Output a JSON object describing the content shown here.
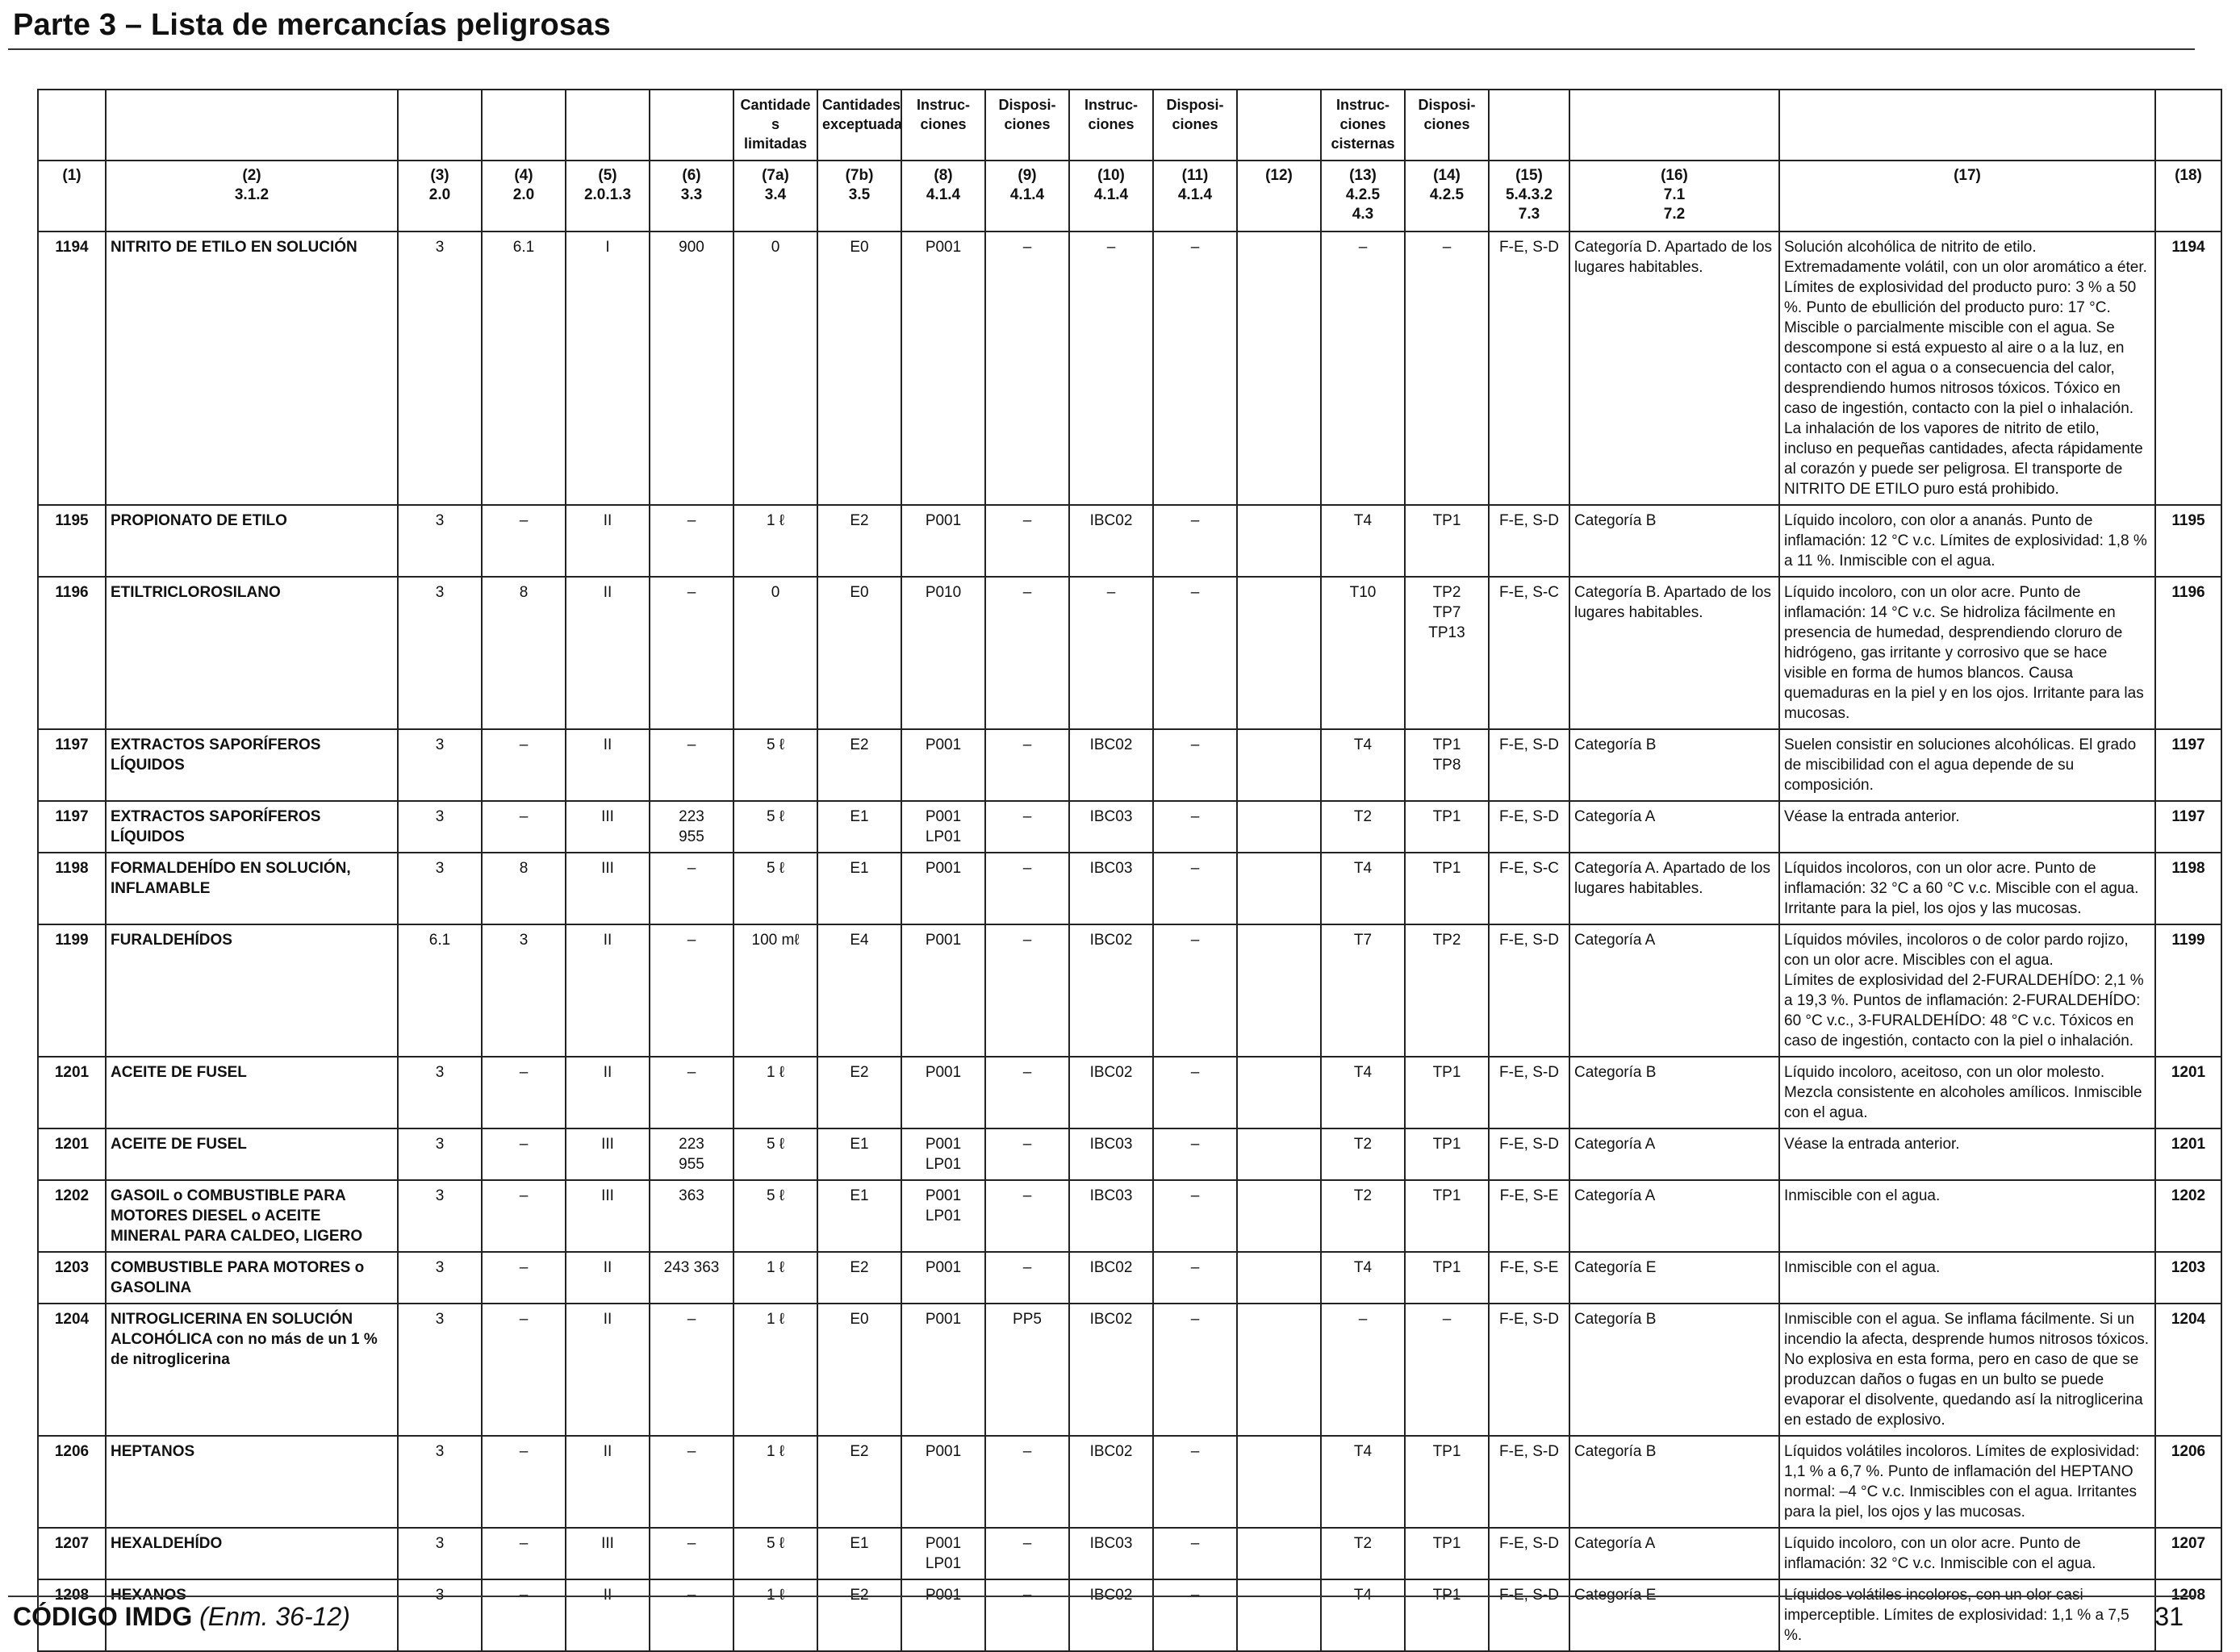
{
  "header": {
    "title": "Parte 3 – Lista de mercancías peligrosas"
  },
  "table": {
    "header_row1": [
      "",
      "",
      "",
      "",
      "",
      "",
      "Cantidade\ns limitadas",
      "Cantidades\nexceptuadas",
      "Instruc-\nciones",
      "Disposi-\nciones",
      "Instruc-\nciones",
      "Disposi-\nciones",
      "",
      "Instruc-\nciones\ncisternas",
      "Disposi-\nciones",
      "",
      "",
      "",
      ""
    ],
    "header_row2": [
      "(1)",
      "(2)\n3.1.2",
      "(3)\n2.0",
      "(4)\n2.0",
      "(5)\n2.0.1.3",
      "(6)\n3.3",
      "(7a)\n3.4",
      "(7b)\n3.5",
      "(8)\n4.1.4",
      "(9)\n4.1.4",
      "(10)\n4.1.4",
      "(11)\n4.1.4",
      "(12)",
      "(13)\n4.2.5\n4.3",
      "(14)\n4.2.5",
      "(15)\n5.4.3.2\n7.3",
      "(16)\n7.1\n7.2",
      "(17)",
      "(18)"
    ],
    "rows": [
      [
        "1194",
        "NITRITO DE ETILO EN SOLUCIÓN",
        "3",
        "6.1",
        "I",
        "900",
        "0",
        "E0",
        "P001",
        "–",
        "–",
        "–",
        "",
        "–",
        "–",
        "F-E, S-D",
        "Categoría D. Apartado de los lugares habitables.",
        "Solución alcohólica de nitrito de etilo. Extremadamente volátil, con un olor aromático a éter. Límites de explosividad del producto puro: 3 % a 50 %. Punto de ebullición del producto puro: 17 °C. Miscible o parcialmente miscible con el agua. Se descompone si está expuesto al aire o a la luz, en contacto con el agua o a consecuencia del calor, desprendiendo humos nitrosos tóxicos. Tóxico en caso de ingestión, contacto con la piel o inhalación. La inhalación de los vapores de nitrito de etilo, incluso en pequeñas cantidades, afecta rápidamente al corazón y puede ser peligrosa. El transporte de NITRITO DE ETILO puro está prohibido.",
        "1194"
      ],
      [
        "1195",
        "PROPIONATO DE ETILO",
        "3",
        "–",
        "II",
        "–",
        "1 ℓ",
        "E2",
        "P001",
        "–",
        "IBC02",
        "–",
        "",
        "T4",
        "TP1",
        "F-E, S-D",
        "Categoría B",
        "Líquido incoloro, con olor a ananás. Punto de inflamación: 12 °C v.c. Límites de explosividad: 1,8 % a 11 %. Inmiscible con el agua.",
        "1195"
      ],
      [
        "1196",
        "ETILTRICLOROSILANO",
        "3",
        "8",
        "II",
        "–",
        "0",
        "E0",
        "P010",
        "–",
        "–",
        "–",
        "",
        "T10",
        "TP2\nTP7\nTP13",
        "F-E, S-C",
        "Categoría B. Apartado de los lugares habitables.",
        "Líquido incoloro, con un olor acre. Punto de inflamación: 14 °C v.c. Se hidroliza fácilmente en presencia de humedad, desprendiendo cloruro de hidrógeno, gas irritante y corrosivo que se hace visible en forma de humos blancos. Causa quemaduras en la piel y en los ojos. Irritante para las mucosas.",
        "1196"
      ],
      [
        "1197",
        "EXTRACTOS SAPORÍFEROS LÍQUIDOS",
        "3",
        "–",
        "II",
        "–",
        "5 ℓ",
        "E2",
        "P001",
        "–",
        "IBC02",
        "–",
        "",
        "T4",
        "TP1\nTP8",
        "F-E, S-D",
        "Categoría B",
        "Suelen consistir en soluciones alcohólicas. El grado de miscibilidad con el agua depende de su composición.",
        "1197"
      ],
      [
        "1197",
        "EXTRACTOS SAPORÍFEROS LÍQUIDOS",
        "3",
        "–",
        "III",
        "223\n955",
        "5 ℓ",
        "E1",
        "P001\nLP01",
        "–",
        "IBC03",
        "–",
        "",
        "T2",
        "TP1",
        "F-E, S-D",
        "Categoría A",
        "Véase la entrada anterior.",
        "1197"
      ],
      [
        "1198",
        "FORMALDEHÍDO EN SOLUCIÓN, INFLAMABLE",
        "3",
        "8",
        "III",
        "–",
        "5 ℓ",
        "E1",
        "P001",
        "–",
        "IBC03",
        "–",
        "",
        "T4",
        "TP1",
        "F-E, S-C",
        "Categoría A. Apartado de los lugares habitables.",
        "Líquidos incoloros, con un olor acre. Punto de inflamación: 32 °C a 60 °C v.c. Miscible con el agua. Irritante para la piel, los ojos y las mucosas.",
        "1198"
      ],
      [
        "1199",
        "FURALDEHÍDOS",
        "6.1",
        "3",
        "II",
        "–",
        "100 mℓ",
        "E4",
        "P001",
        "–",
        "IBC02",
        "–",
        "",
        "T7",
        "TP2",
        "F-E, S-D",
        "Categoría A",
        "Líquidos móviles, incoloros o de color pardo rojizo, con un olor acre. Miscibles con el agua.\nLímites de explosividad del 2-FURALDEHÍDO: 2,1 % a 19,3 %. Puntos de inflamación: 2-FURALDEHÍDO:\n60 °C v.c., 3-FURALDEHÍDO: 48 °C v.c. Tóxicos en caso de ingestión, contacto con la piel o inhalación.",
        "1199"
      ],
      [
        "1201",
        "ACEITE DE FUSEL",
        "3",
        "–",
        "II",
        "–",
        "1 ℓ",
        "E2",
        "P001",
        "–",
        "IBC02",
        "–",
        "",
        "T4",
        "TP1",
        "F-E, S-D",
        "Categoría B",
        "Líquido incoloro, aceitoso, con un olor molesto. Mezcla consistente en alcoholes amílicos. Inmiscible con el agua.",
        "1201"
      ],
      [
        "1201",
        "ACEITE DE FUSEL",
        "3",
        "–",
        "III",
        "223\n955",
        "5 ℓ",
        "E1",
        "P001\nLP01",
        "–",
        "IBC03",
        "–",
        "",
        "T2",
        "TP1",
        "F-E, S-D",
        "Categoría A",
        "Véase la entrada anterior.",
        "1201"
      ],
      [
        "1202",
        "GASOIL o COMBUSTIBLE PARA MOTORES DIESEL o ACEITE MINERAL PARA CALDEO, LIGERO",
        "3",
        "–",
        "III",
        "363",
        "5 ℓ",
        "E1",
        "P001\nLP01",
        "–",
        "IBC03",
        "–",
        "",
        "T2",
        "TP1",
        "F-E, S-E",
        "Categoría A",
        "Inmiscible con el agua.",
        "1202"
      ],
      [
        "1203",
        "COMBUSTIBLE PARA MOTORES o GASOLINA",
        "3",
        "–",
        "II",
        "243 363",
        "1 ℓ",
        "E2",
        "P001",
        "–",
        "IBC02",
        "–",
        "",
        "T4",
        "TP1",
        "F-E, S-E",
        "Categoría E",
        "Inmiscible con el agua.",
        "1203"
      ],
      [
        "1204",
        "NITROGLICERINA EN SOLUCIÓN ALCOHÓLICA con no más de un 1 % de nitroglicerina",
        "3",
        "–",
        "II",
        "–",
        "1 ℓ",
        "E0",
        "P001",
        "PP5",
        "IBC02",
        "–",
        "",
        "–",
        "–",
        "F-E, S-D",
        "Categoría B",
        "Inmiscible con el agua. Se inflama fácilmente. Si un incendio la afecta, desprende humos nitrosos tóxicos. No explosiva en esta forma, pero en caso de que se produzcan daños o fugas en un bulto se puede evaporar el disolvente, quedando así la nitroglicerina en estado de explosivo.",
        "1204"
      ],
      [
        "1206",
        "HEPTANOS",
        "3",
        "–",
        "II",
        "–",
        "1 ℓ",
        "E2",
        "P001",
        "–",
        "IBC02",
        "–",
        "",
        "T4",
        "TP1",
        "F-E, S-D",
        "Categoría B",
        "Líquidos volátiles incoloros. Límites de explosividad: 1,1 % a 6,7 %. Punto de inflamación del HEPTANO normal: –4 °C v.c. Inmiscibles con el agua. Irritantes para la piel, los ojos y las mucosas.",
        "1206"
      ],
      [
        "1207",
        "HEXALDEHÍDO",
        "3",
        "–",
        "III",
        "–",
        "5 ℓ",
        "E1",
        "P001\nLP01",
        "–",
        "IBC03",
        "–",
        "",
        "T2",
        "TP1",
        "F-E, S-D",
        "Categoría A",
        "Líquido incoloro, con un olor acre. Punto de inflamación: 32 °C v.c. Inmiscible con el agua.",
        "1207"
      ],
      [
        "1208",
        "HEXANOS",
        "3",
        "–",
        "II",
        "–",
        "1 ℓ",
        "E2",
        "P001",
        "–",
        "IBC02",
        "–",
        "",
        "T4",
        "TP1",
        "F-E, S-D",
        "Categoría E",
        "Líquidos volátiles incoloros, con un olor casi imperceptible. Límites de explosividad: 1,1 % a 7,5 %.",
        "1208"
      ]
    ]
  },
  "footer": {
    "code": "CÓDIGO IMDG",
    "amendment": "(Enm. 36-12)",
    "page_number": "31"
  }
}
